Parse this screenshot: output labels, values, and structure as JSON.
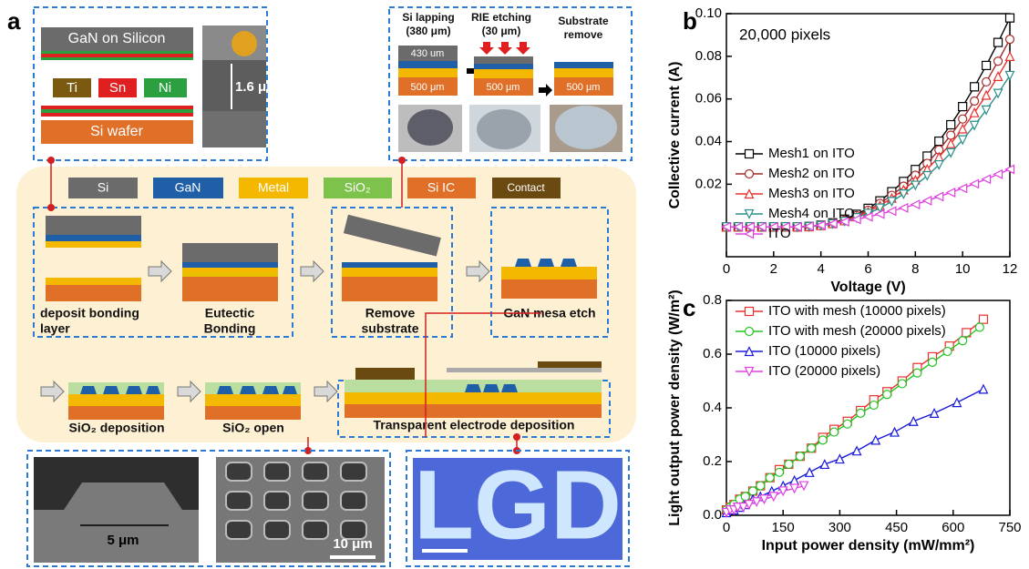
{
  "diagram": {
    "panel_label": "a",
    "box1": {
      "top_label": "GaN on Silicon",
      "metals": [
        "Ti",
        "Sn",
        "Ni"
      ],
      "bottom_label": "Si wafer",
      "thickness": "1.6 μm"
    },
    "box2": {
      "steps": [
        [
          "Si lapping",
          "(380 μm)"
        ],
        [
          "RIE etching",
          "(30 μm)"
        ],
        [
          "Substrate",
          "remove"
        ]
      ],
      "top_thickness": "430 um",
      "bottom_thickness": [
        "500 μm",
        "500 μm",
        "500 μm"
      ]
    },
    "legend": [
      "Si",
      "GaN",
      "Metal",
      "SiO₂",
      "Si IC",
      "Contact"
    ],
    "steps": [
      [
        "deposit bonding",
        "layer"
      ],
      [
        "Eutectic",
        "Bonding"
      ],
      [
        "Remove",
        "substrate"
      ],
      [
        "GaN mesa etch"
      ],
      [
        "SiO₂ deposition"
      ],
      [
        "SiO₂ open"
      ],
      [
        "Transparent electrode deposition"
      ]
    ],
    "scale_bars": [
      "5 μm",
      "10 μm"
    ],
    "display_text": "LGD"
  },
  "chart_data": [
    {
      "type": "line",
      "panel_label": "b",
      "annotation": "20,000 pixels",
      "x_label": "Voltage (V)",
      "y_label": "Collective current (A)",
      "x": [
        0,
        0.5,
        1,
        1.5,
        2,
        2.5,
        3,
        3.5,
        4,
        4.5,
        5,
        5.5,
        6,
        6.5,
        7,
        7.5,
        8,
        8.5,
        9,
        9.5,
        10,
        10.5,
        11,
        11.5,
        12
      ],
      "series": [
        {
          "name": "Mesh1 on ITO",
          "color": "#000000",
          "marker": "square",
          "values": [
            0,
            0,
            0,
            0,
            0,
            0,
            0,
            0.0002,
            0.0008,
            0.0019,
            0.0036,
            0.0059,
            0.0087,
            0.0122,
            0.0165,
            0.0213,
            0.0269,
            0.0332,
            0.0402,
            0.0479,
            0.0564,
            0.0657,
            0.0757,
            0.0865,
            0.098
          ]
        },
        {
          "name": "Mesh2 on ITO",
          "color": "#a52a2a",
          "marker": "circle",
          "values": [
            0,
            0,
            0,
            0,
            0,
            0,
            0,
            0.0002,
            0.0007,
            0.0017,
            0.0032,
            0.0053,
            0.0078,
            0.011,
            0.0148,
            0.0191,
            0.0242,
            0.0298,
            0.0361,
            0.043,
            0.0506,
            0.059,
            0.068,
            0.0777,
            0.088
          ]
        },
        {
          "name": "Mesh3 on ITO",
          "color": "#e8312f",
          "marker": "triangle-up",
          "values": [
            0,
            0,
            0,
            0,
            0,
            0,
            0,
            0.0001,
            0.0006,
            0.0016,
            0.0029,
            0.0048,
            0.0071,
            0.01,
            0.0135,
            0.0174,
            0.022,
            0.0271,
            0.0328,
            0.0391,
            0.046,
            0.0536,
            0.0618,
            0.0706,
            0.08
          ]
        },
        {
          "name": "Mesh4 on ITO",
          "color": "#2a8f8a",
          "marker": "triangle-down",
          "values": [
            0,
            0,
            0,
            0,
            0,
            0,
            0,
            0.0001,
            0.0006,
            0.0014,
            0.0026,
            0.0043,
            0.0063,
            0.0088,
            0.0119,
            0.0154,
            0.0195,
            0.024,
            0.0291,
            0.0347,
            0.0408,
            0.0476,
            0.0548,
            0.0626,
            0.071
          ]
        },
        {
          "name": "ITO",
          "color": "#e040e0",
          "marker": "triangle-left",
          "values": [
            0,
            0,
            0,
            0,
            0,
            0,
            0,
            0.0003,
            0.0008,
            0.0015,
            0.0024,
            0.0035,
            0.0047,
            0.006,
            0.0074,
            0.0089,
            0.0105,
            0.0123,
            0.0142,
            0.0161,
            0.0181,
            0.0202,
            0.0224,
            0.0247,
            0.027
          ]
        }
      ],
      "xlim": [
        0,
        12
      ],
      "xticks": [
        0,
        2,
        4,
        6,
        8,
        10,
        12
      ],
      "ylim": [
        -0.014,
        0.1
      ],
      "yticks": [
        0.02,
        0.04,
        0.06,
        0.08,
        {
          "value": 0.1,
          "label": "0.10"
        }
      ],
      "legend": "lower left",
      "grid": false
    },
    {
      "type": "line",
      "panel_label": "c",
      "x_label": "Input power density (mW/mm²)",
      "y_label": "Light output power density (W/m²)",
      "series": [
        {
          "name": "ITO with mesh (10000 pixels)",
          "color": "#e8312f",
          "marker": "square",
          "x": [
            0,
            10,
            20,
            35,
            50,
            70,
            90,
            115,
            140,
            165,
            195,
            225,
            255,
            285,
            320,
            355,
            390,
            425,
            465,
            505,
            545,
            590,
            635,
            680
          ],
          "values": [
            0.02,
            0.03,
            0.04,
            0.06,
            0.07,
            0.09,
            0.11,
            0.14,
            0.17,
            0.19,
            0.22,
            0.25,
            0.29,
            0.32,
            0.35,
            0.39,
            0.43,
            0.46,
            0.5,
            0.55,
            0.59,
            0.63,
            0.68,
            0.73
          ]
        },
        {
          "name": "ITO with mesh (20000 pixels)",
          "color": "#22c422",
          "marker": "circle",
          "x": [
            0,
            10,
            20,
            35,
            50,
            70,
            90,
            115,
            140,
            165,
            195,
            225,
            255,
            285,
            320,
            355,
            390,
            425,
            465,
            505,
            545,
            585,
            625,
            670
          ],
          "values": [
            0.02,
            0.03,
            0.04,
            0.06,
            0.07,
            0.09,
            0.11,
            0.14,
            0.16,
            0.19,
            0.22,
            0.25,
            0.28,
            0.31,
            0.34,
            0.38,
            0.41,
            0.45,
            0.49,
            0.53,
            0.57,
            0.61,
            0.65,
            0.7
          ]
        },
        {
          "name": "ITO (10000 pixels)",
          "color": "#1a1adb",
          "marker": "triangle-up",
          "x": [
            0,
            10,
            20,
            35,
            50,
            70,
            90,
            120,
            150,
            180,
            220,
            260,
            300,
            345,
            395,
            445,
            495,
            550,
            610,
            680
          ],
          "values": [
            0.01,
            0.02,
            0.02,
            0.03,
            0.04,
            0.06,
            0.07,
            0.09,
            0.11,
            0.13,
            0.16,
            0.19,
            0.21,
            0.24,
            0.28,
            0.31,
            0.35,
            0.38,
            0.42,
            0.47
          ]
        },
        {
          "name": "ITO (20000 pixels)",
          "color": "#e040e0",
          "marker": "triangle-down",
          "x": [
            0,
            10,
            20,
            30,
            45,
            60,
            80,
            100,
            125,
            150,
            180,
            205
          ],
          "values": [
            0.01,
            0.02,
            0.02,
            0.03,
            0.03,
            0.04,
            0.05,
            0.06,
            0.07,
            0.09,
            0.1,
            0.11
          ]
        }
      ],
      "xlim": [
        0,
        750
      ],
      "xticks": [
        0,
        150,
        300,
        450,
        600,
        750
      ],
      "ylim": [
        0,
        0.8
      ],
      "yticks": [
        {
          "value": 0,
          "label": "0.0"
        },
        0.2,
        0.4,
        0.6,
        0.8
      ],
      "legend": "upper left",
      "grid": false
    }
  ]
}
